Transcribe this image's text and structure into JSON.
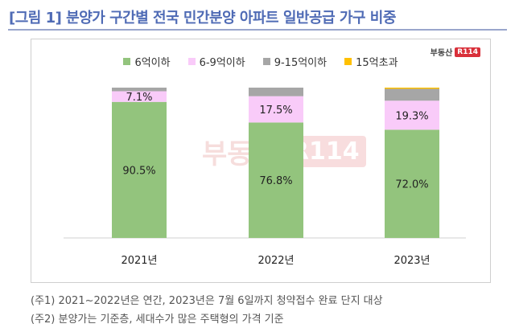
{
  "title": "[그림 1] 분양가 구간별 전국 민간분양 아파트 일반공급 가구 비중",
  "logo": {
    "text": "부동산",
    "badge": "R114"
  },
  "watermark": {
    "text": "부동산",
    "badge": "R114"
  },
  "chart_data": {
    "type": "bar",
    "stacked": true,
    "categories": [
      "2021년",
      "2022년",
      "2023년"
    ],
    "series": [
      {
        "name": "6억이하",
        "color": "#93c47d",
        "values": [
          90.5,
          76.8,
          72.0
        ],
        "labels": [
          "90.5%",
          "76.8%",
          "72.0%"
        ]
      },
      {
        "name": "6-9억이하",
        "color": "#f9cbf9",
        "values": [
          7.1,
          17.5,
          19.3
        ],
        "labels": [
          "7.1%",
          "17.5%",
          "19.3%"
        ]
      },
      {
        "name": "9-15억이하",
        "color": "#a6a6a6",
        "values": [
          2.4,
          5.7,
          7.9
        ],
        "labels": [
          "",
          "",
          ""
        ]
      },
      {
        "name": "15억초과",
        "color": "#ffc000",
        "values": [
          0.0,
          0.0,
          0.8
        ],
        "labels": [
          "",
          "",
          ""
        ]
      }
    ],
    "ylim": [
      0,
      100
    ],
    "grid": false,
    "legend": "top"
  },
  "notes": [
    "(주1) 2021~2022년은 연간, 2023년은 7월 6일까지 청약접수 완료 단지 대상",
    "(주2) 분양가는 기준층, 세대수가 많은 주택형의 가격 기준"
  ]
}
